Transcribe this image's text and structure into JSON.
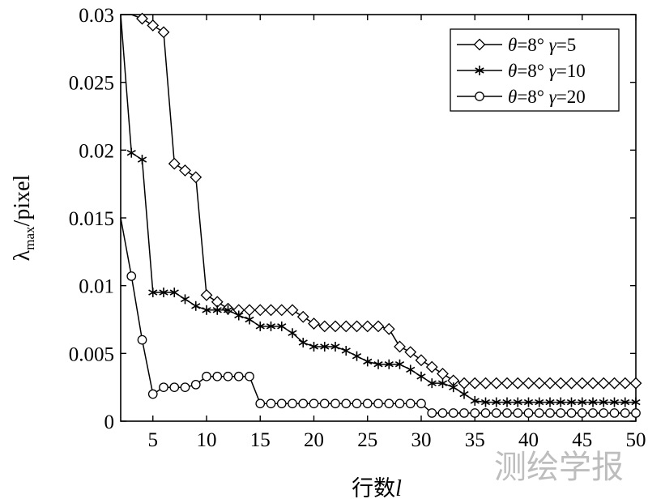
{
  "chart_data": {
    "type": "line",
    "xlabel": "行数",
    "xlabel_var": "l",
    "ylabel": "λ",
    "ylabel_sub": "max",
    "ylabel_unit": "/pixel",
    "xlim": [
      2,
      50
    ],
    "ylim": [
      0,
      0.03
    ],
    "xticks": [
      5,
      10,
      15,
      20,
      25,
      30,
      35,
      40,
      45,
      50
    ],
    "yticks": [
      0,
      0.005,
      0.01,
      0.015,
      0.02,
      0.025,
      0.03
    ],
    "ytick_labels": [
      "0",
      "0.005",
      "0.01",
      "0.015",
      "0.02",
      "0.025",
      "0.03"
    ],
    "legend_position": "top-right",
    "series": [
      {
        "name": "θ=8° γ=5",
        "theta_label": "θ",
        "theta_value": "=8°",
        "gamma_label": "γ",
        "gamma_value": "=5",
        "marker": "diamond",
        "x": [
          2,
          3,
          4,
          5,
          6,
          7,
          8,
          9,
          10,
          11,
          12,
          13,
          14,
          15,
          16,
          17,
          18,
          19,
          20,
          21,
          22,
          23,
          24,
          25,
          26,
          27,
          28,
          29,
          30,
          31,
          32,
          33,
          34,
          35,
          36,
          37,
          38,
          39,
          40,
          41,
          42,
          43,
          44,
          45,
          46,
          47,
          48,
          49,
          50
        ],
        "y": [
          0.03,
          0.03,
          0.0297,
          0.0292,
          0.0287,
          0.019,
          0.0185,
          0.018,
          0.0093,
          0.0088,
          0.0083,
          0.0082,
          0.0082,
          0.0082,
          0.0082,
          0.0082,
          0.0082,
          0.0077,
          0.0072,
          0.007,
          0.007,
          0.007,
          0.007,
          0.007,
          0.007,
          0.0068,
          0.0055,
          0.0051,
          0.0045,
          0.004,
          0.0035,
          0.003,
          0.0028,
          0.0028,
          0.0028,
          0.0028,
          0.0028,
          0.0028,
          0.0028,
          0.0028,
          0.0028,
          0.0028,
          0.0028,
          0.0028,
          0.0028,
          0.0028,
          0.0028,
          0.0028,
          0.0028
        ],
        "marker_start": 4
      },
      {
        "name": "θ=8° γ=10",
        "theta_label": "θ",
        "theta_value": "=8°",
        "gamma_label": "γ",
        "gamma_value": "=10",
        "marker": "asterisk",
        "x": [
          2,
          3,
          4,
          5,
          6,
          7,
          8,
          9,
          10,
          11,
          12,
          13,
          14,
          15,
          16,
          17,
          18,
          19,
          20,
          21,
          22,
          23,
          24,
          25,
          26,
          27,
          28,
          29,
          30,
          31,
          32,
          33,
          34,
          35,
          36,
          37,
          38,
          39,
          40,
          41,
          42,
          43,
          44,
          45,
          46,
          47,
          48,
          49,
          50
        ],
        "y": [
          0.03,
          0.0198,
          0.0193,
          0.0095,
          0.0095,
          0.0095,
          0.009,
          0.0085,
          0.0082,
          0.0082,
          0.0082,
          0.0078,
          0.0075,
          0.007,
          0.007,
          0.007,
          0.0065,
          0.0058,
          0.0055,
          0.0055,
          0.0055,
          0.0052,
          0.0048,
          0.0044,
          0.0042,
          0.0042,
          0.0042,
          0.0038,
          0.0033,
          0.0028,
          0.0028,
          0.0025,
          0.002,
          0.0015,
          0.0014,
          0.0014,
          0.0014,
          0.0014,
          0.0014,
          0.0014,
          0.0014,
          0.0014,
          0.0014,
          0.0014,
          0.0014,
          0.0014,
          0.0014,
          0.0014,
          0.0014
        ],
        "marker_start": 3
      },
      {
        "name": "θ=8° γ=20",
        "theta_label": "θ",
        "theta_value": "=8°",
        "gamma_label": "γ",
        "gamma_value": "=20",
        "marker": "circle",
        "x": [
          2,
          3,
          4,
          5,
          6,
          7,
          8,
          9,
          10,
          11,
          12,
          13,
          14,
          15,
          16,
          17,
          18,
          19,
          20,
          21,
          22,
          23,
          24,
          25,
          26,
          27,
          28,
          29,
          30,
          31,
          32,
          33,
          34,
          35,
          36,
          37,
          38,
          39,
          40,
          41,
          42,
          43,
          44,
          45,
          46,
          47,
          48,
          49,
          50
        ],
        "y": [
          0.015,
          0.0107,
          0.006,
          0.002,
          0.0025,
          0.0025,
          0.0025,
          0.0027,
          0.0033,
          0.0033,
          0.0033,
          0.0033,
          0.0033,
          0.0013,
          0.0013,
          0.0013,
          0.0013,
          0.0013,
          0.0013,
          0.0013,
          0.0013,
          0.0013,
          0.0013,
          0.0013,
          0.0013,
          0.0013,
          0.0013,
          0.0013,
          0.0013,
          0.0006,
          0.0006,
          0.0006,
          0.0006,
          0.0006,
          0.0006,
          0.0006,
          0.0006,
          0.0006,
          0.0006,
          0.0006,
          0.0006,
          0.0006,
          0.0006,
          0.0006,
          0.0006,
          0.0006,
          0.0006,
          0.0006,
          0.0006
        ],
        "marker_start": 3
      }
    ]
  },
  "watermark": "测绘学报",
  "colors": {
    "line": "#000000",
    "background": "#ffffff",
    "watermark": "#bdbdbd"
  }
}
